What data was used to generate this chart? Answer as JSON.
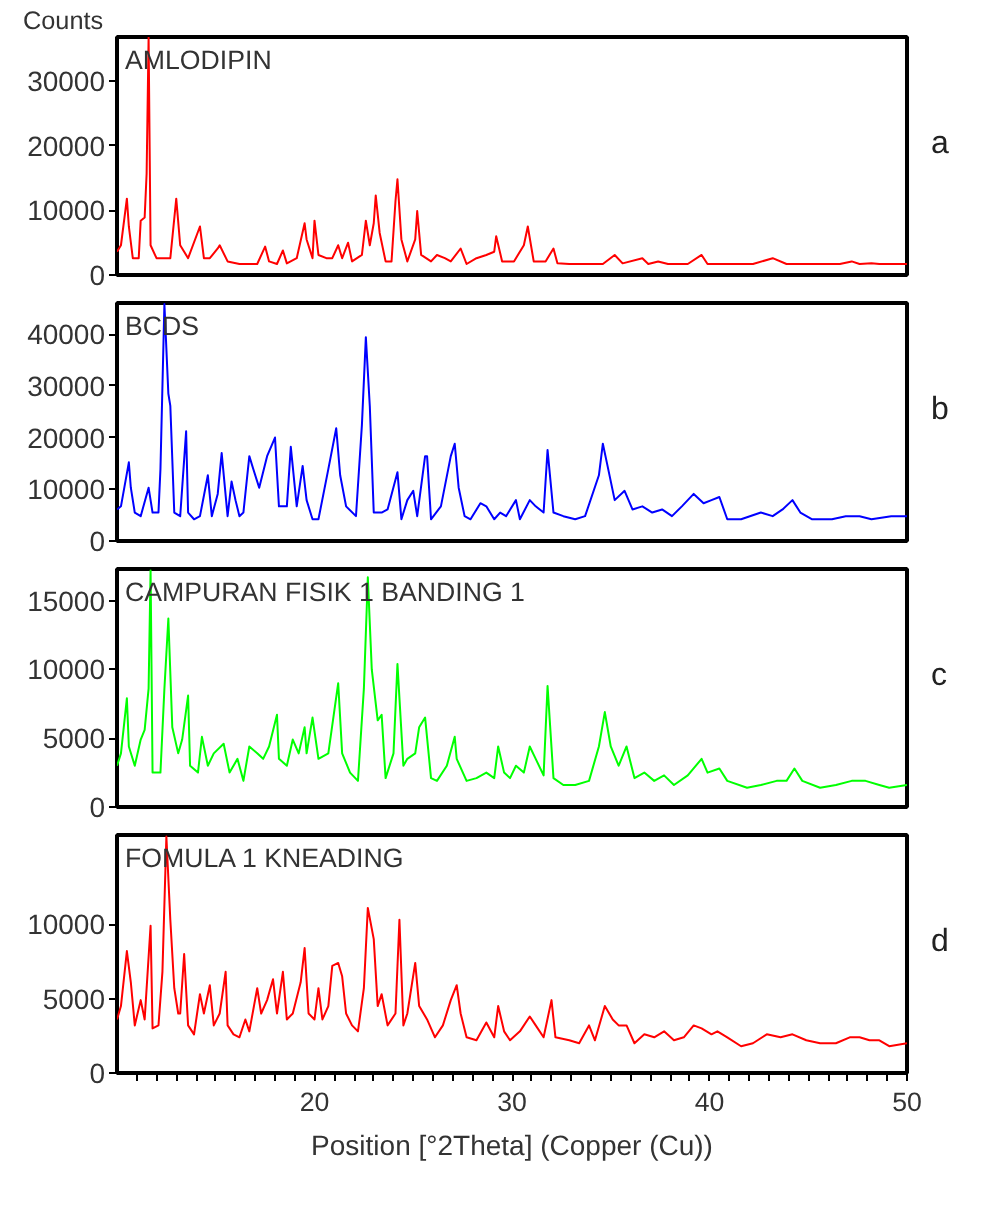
{
  "chart_data": [
    {
      "type": "line",
      "title": "AMLODIPIN",
      "ylabel": "Counts",
      "annotations": [
        "a"
      ],
      "xlim": [
        10,
        50
      ],
      "ylim": [
        0,
        36800
      ],
      "yticks": [
        0,
        10000,
        20000,
        30000
      ],
      "tick_labels": "y",
      "grid": false,
      "series": [
        {
          "color": "#ff0000",
          "x": [
            10.0,
            10.2,
            10.5,
            10.6,
            10.8,
            11.1,
            11.2,
            11.4,
            11.5,
            11.6,
            11.7,
            12.0,
            12.4,
            12.7,
            13.0,
            13.2,
            13.6,
            14.2,
            14.4,
            14.7,
            15.1,
            15.2,
            15.6,
            16.2,
            17.1,
            17.5,
            17.7,
            18.1,
            18.4,
            18.6,
            19.1,
            19.5,
            19.6,
            19.9,
            20.0,
            20.2,
            20.6,
            20.9,
            21.2,
            21.4,
            21.7,
            21.9,
            22.4,
            22.6,
            22.8,
            23.0,
            23.1,
            23.3,
            23.6,
            23.9,
            24.1,
            24.2,
            24.4,
            24.7,
            25.1,
            25.2,
            25.4,
            25.9,
            26.2,
            26.6,
            26.9,
            27.4,
            27.7,
            28.2,
            28.7,
            29.1,
            29.2,
            29.5,
            30.1,
            30.6,
            30.8,
            31.1,
            31.7,
            32.1,
            32.3,
            32.9,
            33.9,
            34.6,
            35.2,
            35.6,
            36.6,
            36.9,
            37.4,
            37.9,
            38.9,
            39.6,
            39.9,
            40.9,
            42.2,
            43.2,
            43.9,
            45.2,
            46.6,
            47.2,
            47.6,
            48.2,
            48.6,
            50.0
          ],
          "values": [
            3600,
            4600,
            11800,
            7500,
            2600,
            2600,
            8400,
            8900,
            15700,
            36700,
            4600,
            2600,
            2600,
            2600,
            11800,
            4600,
            2600,
            7500,
            2600,
            2600,
            4100,
            4600,
            2100,
            1700,
            1700,
            4400,
            2100,
            1700,
            3800,
            1800,
            2600,
            8000,
            5500,
            2600,
            8400,
            3100,
            2600,
            2600,
            4600,
            2600,
            5000,
            2100,
            3100,
            8400,
            4600,
            8000,
            12300,
            6500,
            2100,
            2100,
            11400,
            14800,
            5500,
            2100,
            5500,
            9900,
            3100,
            2100,
            3100,
            2600,
            2100,
            4100,
            1700,
            2600,
            3100,
            3600,
            6000,
            2100,
            2100,
            4600,
            7500,
            2100,
            2100,
            4100,
            1800,
            1700,
            1700,
            1700,
            3100,
            1800,
            2600,
            1700,
            2100,
            1700,
            1700,
            3100,
            1700,
            1700,
            1700,
            2600,
            1700,
            1700,
            1700,
            2100,
            1700,
            1800,
            1700,
            1700
          ]
        }
      ]
    },
    {
      "type": "line",
      "title": "BCDS",
      "annotations": [
        "b"
      ],
      "xlim": [
        10,
        50
      ],
      "ylim": [
        0,
        46000
      ],
      "yticks": [
        0,
        10000,
        20000,
        30000,
        40000
      ],
      "tick_labels": "y",
      "grid": false,
      "series": [
        {
          "color": "#0000ff",
          "x": [
            10.0,
            10.2,
            10.6,
            10.7,
            10.9,
            11.2,
            11.6,
            11.8,
            12.1,
            12.2,
            12.4,
            12.6,
            12.7,
            12.9,
            13.2,
            13.5,
            13.6,
            13.9,
            14.2,
            14.6,
            14.8,
            15.1,
            15.3,
            15.6,
            15.8,
            16.0,
            16.2,
            16.4,
            16.7,
            16.9,
            17.2,
            17.6,
            18.0,
            18.2,
            18.6,
            18.8,
            19.1,
            19.4,
            19.6,
            19.9,
            20.2,
            20.7,
            21.1,
            21.3,
            21.6,
            22.1,
            22.4,
            22.6,
            22.8,
            23.0,
            23.4,
            23.7,
            24.2,
            24.4,
            24.7,
            25.0,
            25.2,
            25.6,
            25.7,
            25.9,
            26.4,
            26.9,
            27.1,
            27.3,
            27.6,
            27.9,
            28.4,
            28.7,
            29.1,
            29.4,
            29.7,
            30.2,
            30.4,
            30.9,
            31.2,
            31.6,
            31.8,
            32.1,
            32.6,
            33.2,
            33.7,
            34.4,
            34.6,
            34.8,
            35.2,
            35.7,
            36.1,
            36.6,
            37.1,
            37.6,
            38.1,
            38.6,
            39.2,
            39.7,
            40.1,
            40.5,
            40.9,
            41.6,
            42.6,
            43.2,
            43.7,
            44.2,
            44.6,
            45.2,
            46.2,
            46.9,
            47.6,
            48.2,
            49.2,
            50.0
          ],
          "values": [
            6100,
            6700,
            15200,
            10300,
            5500,
            4800,
            10300,
            5500,
            5500,
            13900,
            45800,
            28500,
            26100,
            5500,
            4800,
            21200,
            5500,
            4200,
            4800,
            12700,
            4800,
            9100,
            17000,
            4800,
            11500,
            7900,
            4800,
            5500,
            16400,
            13900,
            10300,
            16400,
            20000,
            6700,
            6700,
            18200,
            6700,
            14500,
            7900,
            4200,
            4200,
            13900,
            21800,
            12700,
            6700,
            4800,
            22400,
            39400,
            26100,
            5500,
            5500,
            6100,
            13300,
            4200,
            7900,
            9700,
            4800,
            16400,
            16400,
            4200,
            6700,
            16400,
            18800,
            10300,
            4800,
            4200,
            7300,
            6700,
            4200,
            5500,
            4800,
            7900,
            4200,
            7900,
            6700,
            5500,
            17600,
            5500,
            4800,
            4200,
            4800,
            12700,
            18800,
            15200,
            7900,
            9700,
            6100,
            6700,
            5500,
            6100,
            4800,
            6700,
            9100,
            7300,
            7900,
            8500,
            4200,
            4200,
            5500,
            4800,
            6100,
            7900,
            5500,
            4200,
            4200,
            4800,
            4800,
            4200,
            4800,
            4800
          ]
        }
      ]
    },
    {
      "type": "line",
      "title": "CAMPURAN FISIK 1 BANDING 1",
      "annotations": [
        "c"
      ],
      "xlim": [
        10,
        50
      ],
      "ylim": [
        0,
        17300
      ],
      "yticks": [
        0,
        5000,
        10000,
        15000
      ],
      "tick_labels": "y",
      "grid": false,
      "series": [
        {
          "color": "#00ff00",
          "x": [
            10.0,
            10.2,
            10.5,
            10.6,
            10.9,
            11.2,
            11.4,
            11.6,
            11.7,
            11.8,
            12.2,
            12.4,
            12.6,
            12.8,
            13.1,
            13.3,
            13.6,
            13.7,
            14.1,
            14.3,
            14.6,
            14.9,
            15.4,
            15.7,
            16.1,
            16.4,
            16.7,
            17.1,
            17.4,
            17.7,
            18.1,
            18.2,
            18.6,
            18.9,
            19.2,
            19.5,
            19.6,
            19.9,
            20.2,
            20.7,
            21.2,
            21.4,
            21.8,
            22.2,
            22.5,
            22.7,
            22.9,
            23.2,
            23.4,
            23.6,
            24.0,
            24.2,
            24.5,
            24.7,
            25.1,
            25.3,
            25.6,
            25.9,
            26.2,
            26.7,
            27.1,
            27.2,
            27.7,
            28.2,
            28.7,
            29.1,
            29.3,
            29.6,
            29.9,
            30.2,
            30.6,
            30.9,
            31.2,
            31.6,
            31.8,
            32.1,
            32.6,
            33.2,
            33.9,
            34.4,
            34.7,
            35.0,
            35.4,
            35.8,
            36.2,
            36.7,
            37.2,
            37.7,
            38.2,
            38.9,
            39.6,
            39.9,
            40.5,
            40.9,
            41.9,
            42.6,
            43.4,
            43.9,
            44.3,
            44.7,
            45.6,
            46.4,
            47.2,
            47.9,
            48.6,
            49.1,
            50.0
          ],
          "values": [
            3000,
            3900,
            7900,
            4400,
            3000,
            4900,
            5600,
            8600,
            17200,
            2500,
            2500,
            8600,
            13700,
            5800,
            3900,
            4900,
            8100,
            3000,
            2500,
            5100,
            3000,
            3900,
            4600,
            2500,
            3500,
            1900,
            4400,
            3900,
            3500,
            4400,
            6700,
            3500,
            3000,
            4900,
            3900,
            5800,
            3900,
            6500,
            3500,
            3900,
            9000,
            3900,
            2500,
            1900,
            8600,
            16700,
            10000,
            6300,
            6700,
            2100,
            3900,
            10400,
            3000,
            3500,
            3900,
            5800,
            6500,
            2100,
            1900,
            3000,
            5100,
            3500,
            1900,
            2100,
            2500,
            2100,
            4400,
            2500,
            2100,
            3000,
            2500,
            4400,
            3500,
            2300,
            8800,
            2100,
            1600,
            1600,
            1900,
            4400,
            6900,
            4400,
            3000,
            4400,
            2100,
            2500,
            1900,
            2300,
            1600,
            2300,
            3500,
            2500,
            2800,
            1900,
            1400,
            1600,
            1900,
            1900,
            2800,
            1900,
            1400,
            1600,
            1900,
            1900,
            1600,
            1400,
            1600
          ]
        }
      ]
    },
    {
      "type": "line",
      "title": "FOMULA 1 KNEADING",
      "xlabel": "Position [°2Theta] (Copper (Cu))",
      "annotations": [
        "d"
      ],
      "xlim": [
        10,
        50
      ],
      "ylim": [
        0,
        16000
      ],
      "yticks": [
        0,
        5000,
        10000
      ],
      "grid": false,
      "xticks": [
        {
          "value": 11,
          "label": null
        },
        {
          "value": 12,
          "label": null
        },
        {
          "value": 13,
          "label": null
        },
        {
          "value": 14,
          "label": null
        },
        {
          "value": 15,
          "label": null
        },
        {
          "value": 16,
          "label": null
        },
        {
          "value": 17,
          "label": null
        },
        {
          "value": 18,
          "label": null
        },
        {
          "value": 19,
          "label": null
        },
        20,
        {
          "value": 21,
          "label": null
        },
        {
          "value": 22,
          "label": null
        },
        {
          "value": 23,
          "label": null
        },
        {
          "value": 24,
          "label": null
        },
        {
          "value": 25,
          "label": null
        },
        {
          "value": 26,
          "label": null
        },
        {
          "value": 27,
          "label": null
        },
        {
          "value": 28,
          "label": null
        },
        {
          "value": 29,
          "label": null
        },
        30,
        {
          "value": 31,
          "label": null
        },
        {
          "value": 32,
          "label": null
        },
        {
          "value": 33,
          "label": null
        },
        {
          "value": 34,
          "label": null
        },
        {
          "value": 35,
          "label": null
        },
        {
          "value": 36,
          "label": null
        },
        {
          "value": 37,
          "label": null
        },
        {
          "value": 38,
          "label": null
        },
        {
          "value": 39,
          "label": null
        },
        40,
        {
          "value": 41,
          "label": null
        },
        {
          "value": 42,
          "label": null
        },
        {
          "value": 43,
          "label": null
        },
        {
          "value": 44,
          "label": null
        },
        {
          "value": 45,
          "label": null
        },
        {
          "value": 46,
          "label": null
        },
        {
          "value": 47,
          "label": null
        },
        {
          "value": 48,
          "label": null
        },
        {
          "value": 49,
          "label": null
        },
        50
      ],
      "series": [
        {
          "color": "#ff0000",
          "x": [
            10.0,
            10.2,
            10.5,
            10.7,
            10.9,
            11.2,
            11.4,
            11.7,
            11.8,
            12.1,
            12.3,
            12.5,
            12.7,
            12.9,
            13.1,
            13.2,
            13.4,
            13.6,
            13.9,
            14.2,
            14.4,
            14.7,
            14.9,
            15.2,
            15.5,
            15.6,
            15.9,
            16.2,
            16.5,
            16.7,
            17.1,
            17.3,
            17.6,
            17.9,
            18.1,
            18.4,
            18.6,
            18.9,
            19.3,
            19.5,
            19.7,
            20.0,
            20.2,
            20.4,
            20.7,
            20.9,
            21.2,
            21.4,
            21.6,
            21.9,
            22.2,
            22.5,
            22.7,
            23.0,
            23.2,
            23.4,
            23.7,
            24.1,
            24.3,
            24.5,
            24.7,
            25.1,
            25.3,
            25.7,
            26.1,
            26.5,
            26.9,
            27.2,
            27.4,
            27.7,
            28.2,
            28.7,
            29.1,
            29.3,
            29.6,
            29.9,
            30.4,
            30.9,
            31.2,
            31.6,
            32.0,
            32.2,
            32.9,
            33.4,
            33.9,
            34.2,
            34.7,
            35.1,
            35.4,
            35.8,
            36.2,
            36.7,
            37.2,
            37.7,
            38.2,
            38.7,
            39.2,
            39.6,
            40.1,
            40.4,
            40.9,
            41.6,
            42.2,
            42.9,
            43.6,
            44.2,
            44.9,
            45.6,
            46.4,
            47.1,
            47.6,
            48.1,
            48.6,
            49.1,
            50.0
          ],
          "values": [
            3600,
            4500,
            8200,
            6100,
            3200,
            4900,
            3600,
            9900,
            3000,
            3200,
            6800,
            15900,
            10300,
            5700,
            4000,
            4000,
            8000,
            3200,
            2600,
            5300,
            4000,
            5900,
            3200,
            4000,
            6800,
            3200,
            2600,
            2400,
            3600,
            2800,
            5700,
            4000,
            4900,
            6300,
            4000,
            6800,
            3600,
            4000,
            6100,
            8400,
            4000,
            3600,
            5700,
            3600,
            4500,
            7200,
            7400,
            6500,
            4000,
            3200,
            2800,
            5700,
            11100,
            9000,
            4500,
            5300,
            3200,
            4000,
            10300,
            3200,
            4000,
            7400,
            4500,
            3600,
            2400,
            3200,
            4900,
            5900,
            4000,
            2400,
            2200,
            3400,
            2400,
            4500,
            2800,
            2200,
            2800,
            3800,
            3200,
            2400,
            4900,
            2400,
            2200,
            2000,
            3200,
            2200,
            4500,
            3600,
            3200,
            3200,
            2000,
            2600,
            2400,
            2800,
            2200,
            2400,
            3200,
            3000,
            2600,
            2800,
            2400,
            1800,
            2000,
            2600,
            2400,
            2600,
            2200,
            2000,
            2000,
            2400,
            2400,
            2200,
            2200,
            1800,
            2000
          ]
        }
      ]
    }
  ]
}
